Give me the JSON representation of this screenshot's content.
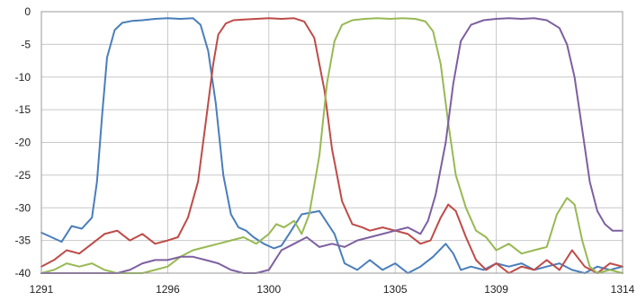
{
  "chart_data": {
    "type": "line",
    "title": "",
    "xlabel": "",
    "ylabel": "",
    "xlim": [
      1291,
      1314
    ],
    "ylim": [
      -40,
      0
    ],
    "grid": true,
    "legend": "none",
    "x_tick_labels": [
      "1291",
      "1296",
      "1300",
      "1305",
      "1309",
      "1314"
    ],
    "y_tick_labels": [
      "0",
      "-5",
      "-10",
      "-15",
      "-20",
      "-25",
      "-30",
      "-35",
      "-40"
    ],
    "x_ticks": [
      1291,
      1296,
      1300,
      1305,
      1309,
      1314
    ],
    "y_ticks": [
      0,
      -5,
      -10,
      -15,
      -20,
      -25,
      -30,
      -35,
      -40
    ],
    "series": [
      {
        "color": "#4a7ebb",
        "x": [
          1291,
          1291.8,
          1292.2,
          1292.6,
          1293.0,
          1293.2,
          1293.4,
          1293.6,
          1293.9,
          1294.2,
          1294.6,
          1295.0,
          1295.5,
          1296.0,
          1296.5,
          1297.0,
          1297.3,
          1297.6,
          1297.9,
          1298.2,
          1298.5,
          1298.8,
          1299.1,
          1299.4,
          1299.8,
          1300.2,
          1300.5,
          1300.8,
          1301.3,
          1302.0,
          1302.6,
          1303.0,
          1303.5,
          1304.0,
          1304.5,
          1305.0,
          1305.5,
          1306.0,
          1306.5,
          1307.0,
          1307.3,
          1307.6,
          1308.0,
          1308.5,
          1309.0,
          1309.5,
          1310.0,
          1310.5,
          1311.0,
          1311.5,
          1312.0,
          1312.5,
          1313.0,
          1313.5,
          1314
        ],
        "y": [
          -33.8,
          -35.2,
          -32.8,
          -33.2,
          -31.5,
          -26.0,
          -16.0,
          -7.0,
          -2.8,
          -1.7,
          -1.4,
          -1.3,
          -1.1,
          -1.0,
          -1.1,
          -1.0,
          -2.0,
          -6.0,
          -14.0,
          -25.0,
          -31.0,
          -33.0,
          -33.5,
          -34.5,
          -35.5,
          -36.2,
          -35.8,
          -34.0,
          -31.0,
          -30.5,
          -34.0,
          -38.5,
          -39.5,
          -38.0,
          -39.5,
          -38.5,
          -40.0,
          -39.0,
          -37.5,
          -35.5,
          -37.0,
          -39.5,
          -39.0,
          -39.5,
          -38.5,
          -39.0,
          -38.5,
          -39.5,
          -39.0,
          -38.5,
          -39.5,
          -40.0,
          -39.0,
          -39.5,
          -39.0
        ]
      },
      {
        "color": "#be4b48",
        "x": [
          1291,
          1291.5,
          1292.0,
          1292.5,
          1293.0,
          1293.5,
          1294.0,
          1294.5,
          1295.0,
          1295.5,
          1296.0,
          1296.4,
          1296.8,
          1297.2,
          1297.5,
          1297.8,
          1298.0,
          1298.3,
          1298.6,
          1299.0,
          1299.5,
          1300.0,
          1300.5,
          1301.0,
          1301.4,
          1301.8,
          1302.2,
          1302.5,
          1302.9,
          1303.3,
          1303.7,
          1304.0,
          1304.5,
          1305.0,
          1305.5,
          1306.0,
          1306.4,
          1306.8,
          1307.1,
          1307.4,
          1307.8,
          1308.2,
          1308.6,
          1309.0,
          1309.5,
          1310.0,
          1310.5,
          1311.0,
          1311.5,
          1312.0,
          1312.5,
          1313.0,
          1313.5,
          1314
        ],
        "y": [
          -39.0,
          -38.0,
          -36.5,
          -37.0,
          -35.5,
          -34.0,
          -33.5,
          -35.0,
          -34.0,
          -35.5,
          -35.0,
          -34.5,
          -31.5,
          -26.0,
          -17.0,
          -8.0,
          -3.5,
          -1.8,
          -1.3,
          -1.2,
          -1.1,
          -1.0,
          -1.1,
          -1.0,
          -1.5,
          -4.0,
          -12.0,
          -21.0,
          -29.0,
          -32.5,
          -33.0,
          -33.5,
          -33.0,
          -33.5,
          -34.0,
          -35.5,
          -35.0,
          -31.5,
          -29.5,
          -30.5,
          -34.5,
          -38.0,
          -39.5,
          -38.5,
          -40.0,
          -39.0,
          -39.5,
          -38.0,
          -39.5,
          -36.5,
          -39.0,
          -40.0,
          -38.5,
          -39.0
        ]
      },
      {
        "color": "#98b954",
        "x": [
          1291,
          1291.5,
          1292.0,
          1292.5,
          1293.0,
          1293.5,
          1294.0,
          1294.5,
          1295.0,
          1295.5,
          1296.0,
          1296.5,
          1297.0,
          1297.5,
          1298.0,
          1298.5,
          1299.0,
          1299.5,
          1300.0,
          1300.3,
          1300.6,
          1301.0,
          1301.3,
          1301.6,
          1302.0,
          1302.3,
          1302.6,
          1302.9,
          1303.3,
          1303.8,
          1304.3,
          1304.8,
          1305.3,
          1305.8,
          1306.2,
          1306.5,
          1306.8,
          1307.1,
          1307.4,
          1307.8,
          1308.2,
          1308.6,
          1309.0,
          1309.5,
          1310.0,
          1310.5,
          1311.0,
          1311.4,
          1311.8,
          1312.1,
          1312.4,
          1312.7,
          1313.0,
          1313.5,
          1314
        ],
        "y": [
          -40.0,
          -39.5,
          -38.5,
          -39.0,
          -38.5,
          -39.5,
          -40.0,
          -40.0,
          -40.0,
          -39.5,
          -39.0,
          -37.5,
          -36.5,
          -36.0,
          -35.5,
          -35.0,
          -34.5,
          -35.5,
          -34.0,
          -32.5,
          -33.0,
          -32.0,
          -34.0,
          -31.0,
          -22.0,
          -11.0,
          -4.5,
          -2.0,
          -1.3,
          -1.1,
          -1.0,
          -1.1,
          -1.0,
          -1.1,
          -1.5,
          -3.0,
          -8.0,
          -17.0,
          -25.0,
          -30.0,
          -33.5,
          -34.5,
          -36.5,
          -35.5,
          -37.0,
          -36.5,
          -36.0,
          -31.0,
          -28.5,
          -29.5,
          -35.0,
          -39.0,
          -40.0,
          -39.5,
          -40.0
        ]
      },
      {
        "color": "#7d60a0",
        "x": [
          1291,
          1291.5,
          1292.0,
          1292.5,
          1293.0,
          1293.5,
          1294.0,
          1294.5,
          1295.0,
          1295.5,
          1296.0,
          1296.5,
          1297.0,
          1297.5,
          1298.0,
          1298.5,
          1299.0,
          1299.5,
          1300.0,
          1300.5,
          1301.0,
          1301.5,
          1302.0,
          1302.5,
          1303.0,
          1303.5,
          1304.0,
          1304.5,
          1305.0,
          1305.5,
          1306.0,
          1306.3,
          1306.6,
          1307.0,
          1307.3,
          1307.6,
          1308.0,
          1308.5,
          1309.0,
          1309.5,
          1310.0,
          1310.5,
          1311.0,
          1311.5,
          1311.8,
          1312.1,
          1312.4,
          1312.7,
          1313.0,
          1313.3,
          1313.6,
          1314
        ],
        "y": [
          -40.0,
          -40.0,
          -40.0,
          -40.0,
          -40.0,
          -40.0,
          -40.0,
          -39.5,
          -38.5,
          -38.0,
          -38.0,
          -37.5,
          -37.5,
          -38.0,
          -38.5,
          -39.5,
          -40.0,
          -40.0,
          -39.5,
          -36.5,
          -35.5,
          -34.5,
          -36.0,
          -35.5,
          -36.0,
          -35.0,
          -34.5,
          -34.0,
          -33.5,
          -33.0,
          -34.0,
          -32.0,
          -28.0,
          -20.0,
          -11.0,
          -4.5,
          -2.0,
          -1.3,
          -1.1,
          -1.0,
          -1.1,
          -1.0,
          -1.3,
          -2.5,
          -5.0,
          -10.0,
          -18.0,
          -26.0,
          -30.5,
          -32.5,
          -33.5,
          -33.5
        ]
      }
    ]
  }
}
